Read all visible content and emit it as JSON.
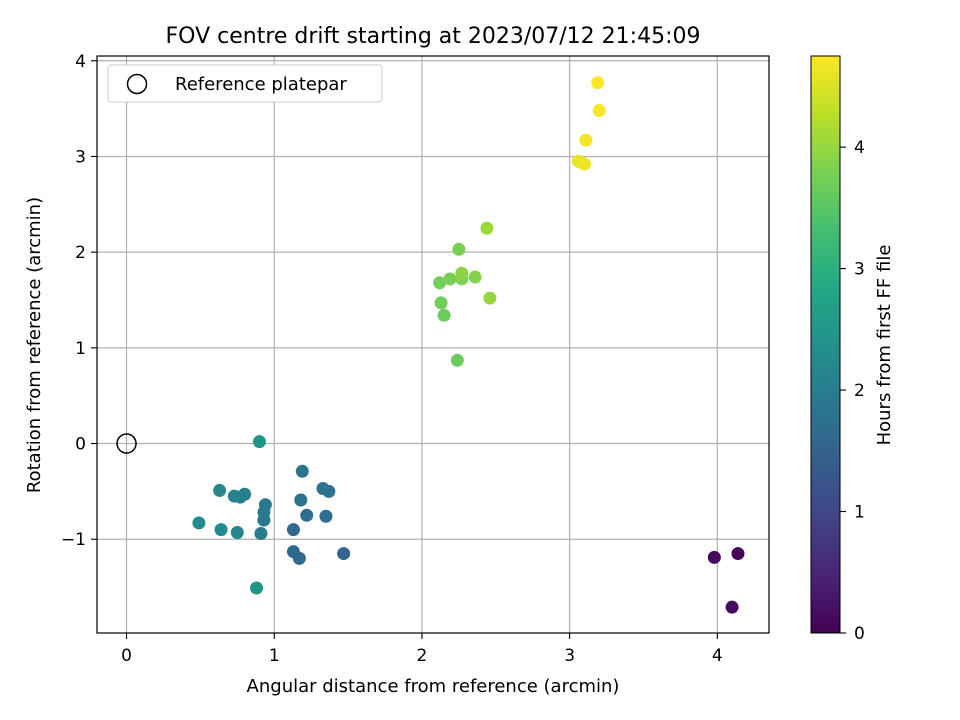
{
  "chart_data": {
    "type": "scatter",
    "title": "FOV centre drift starting at 2023/07/12 21:45:09",
    "xlabel": "Angular distance from reference (arcmin)",
    "ylabel": "Rotation from reference (arcmin)",
    "colorbar_label": "Hours from first FF file",
    "xlim": [
      -0.2,
      4.35
    ],
    "ylim": [
      -1.98,
      4.05
    ],
    "xticks": [
      0,
      1,
      2,
      3,
      4
    ],
    "yticks": [
      -1,
      0,
      1,
      2,
      3,
      4
    ],
    "colorbar_range": [
      0,
      4.75
    ],
    "colorbar_ticks": [
      0,
      1,
      2,
      3,
      4
    ],
    "colormap": "viridis",
    "grid": true,
    "legend_position": "top-left",
    "reference": {
      "label": "Reference platepar",
      "x": 0,
      "y": 0,
      "marker": "open-circle"
    },
    "points": [
      {
        "x": 4.14,
        "y": -1.15,
        "t": 0.05
      },
      {
        "x": 3.98,
        "y": -1.19,
        "t": 0.1
      },
      {
        "x": 4.1,
        "y": -1.71,
        "t": 0.15
      },
      {
        "x": 1.47,
        "y": -1.15,
        "t": 1.55
      },
      {
        "x": 1.17,
        "y": -1.2,
        "t": 1.6
      },
      {
        "x": 1.13,
        "y": -1.13,
        "t": 1.62
      },
      {
        "x": 1.13,
        "y": -0.9,
        "t": 1.65
      },
      {
        "x": 1.35,
        "y": -0.76,
        "t": 1.7
      },
      {
        "x": 1.22,
        "y": -0.75,
        "t": 1.72
      },
      {
        "x": 1.37,
        "y": -0.5,
        "t": 1.75
      },
      {
        "x": 1.33,
        "y": -0.47,
        "t": 1.78
      },
      {
        "x": 1.18,
        "y": -0.59,
        "t": 1.8
      },
      {
        "x": 1.19,
        "y": -0.29,
        "t": 1.82
      },
      {
        "x": 0.93,
        "y": -0.8,
        "t": 1.88
      },
      {
        "x": 0.93,
        "y": -0.72,
        "t": 1.9
      },
      {
        "x": 0.94,
        "y": -0.64,
        "t": 1.93
      },
      {
        "x": 0.91,
        "y": -0.94,
        "t": 1.95
      },
      {
        "x": 0.8,
        "y": -0.53,
        "t": 2.05
      },
      {
        "x": 0.77,
        "y": -0.56,
        "t": 2.08
      },
      {
        "x": 0.73,
        "y": -0.55,
        "t": 2.1
      },
      {
        "x": 0.75,
        "y": -0.93,
        "t": 2.15
      },
      {
        "x": 0.63,
        "y": -0.49,
        "t": 2.2
      },
      {
        "x": 0.64,
        "y": -0.9,
        "t": 2.25
      },
      {
        "x": 0.49,
        "y": -0.83,
        "t": 2.3
      },
      {
        "x": 0.9,
        "y": 0.02,
        "t": 2.45
      },
      {
        "x": 0.88,
        "y": -1.51,
        "t": 2.5
      },
      {
        "x": 2.24,
        "y": 0.87,
        "t": 3.65
      },
      {
        "x": 2.15,
        "y": 1.34,
        "t": 3.68
      },
      {
        "x": 2.13,
        "y": 1.47,
        "t": 3.7
      },
      {
        "x": 2.12,
        "y": 1.68,
        "t": 3.72
      },
      {
        "x": 2.19,
        "y": 1.72,
        "t": 3.75
      },
      {
        "x": 2.25,
        "y": 2.03,
        "t": 3.78
      },
      {
        "x": 2.27,
        "y": 1.72,
        "t": 3.82
      },
      {
        "x": 2.36,
        "y": 1.74,
        "t": 3.85
      },
      {
        "x": 2.27,
        "y": 1.78,
        "t": 3.95
      },
      {
        "x": 2.46,
        "y": 1.52,
        "t": 4.0
      },
      {
        "x": 2.44,
        "y": 2.25,
        "t": 4.05
      },
      {
        "x": 3.06,
        "y": 2.95,
        "t": 4.6
      },
      {
        "x": 3.09,
        "y": 2.93,
        "t": 4.62
      },
      {
        "x": 3.1,
        "y": 2.92,
        "t": 4.65
      },
      {
        "x": 3.11,
        "y": 3.17,
        "t": 4.68
      },
      {
        "x": 3.2,
        "y": 3.48,
        "t": 4.7
      },
      {
        "x": 3.19,
        "y": 3.77,
        "t": 4.75
      }
    ]
  }
}
